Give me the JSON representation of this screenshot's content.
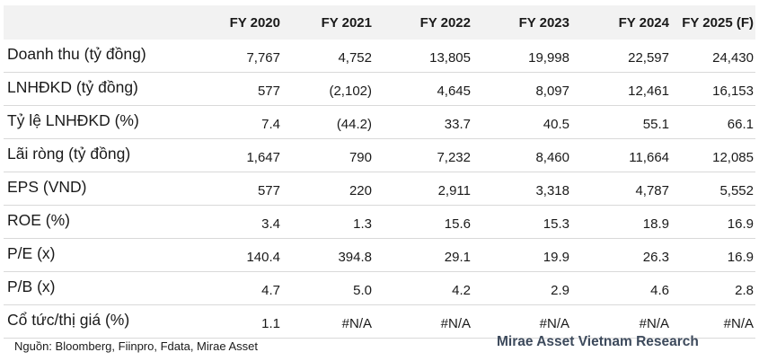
{
  "header": [
    "FY 2020",
    "FY 2021",
    "FY 2022",
    "FY 2023",
    "FY 2024",
    "FY 2025 (F)"
  ],
  "rows": [
    {
      "label": "Doanh thu (tỷ đồng)",
      "values": [
        "7,767",
        "4,752",
        "13,805",
        "19,998",
        "22,597",
        "24,430"
      ]
    },
    {
      "label": "LNHĐKD (tỷ đồng)",
      "values": [
        "577",
        "(2,102)",
        "4,645",
        "8,097",
        "12,461",
        "16,153"
      ]
    },
    {
      "label": "Tỷ lệ LNHĐKD (%)",
      "values": [
        "7.4",
        "(44.2)",
        "33.7",
        "40.5",
        "55.1",
        "66.1"
      ]
    },
    {
      "label": "Lãi ròng (tỷ đồng)",
      "values": [
        "1,647",
        "790",
        "7,232",
        "8,460",
        "11,664",
        "12,085"
      ]
    },
    {
      "label": "EPS (VND)",
      "values": [
        "577",
        "220",
        "2,911",
        "3,318",
        "4,787",
        "5,552"
      ]
    },
    {
      "label": "ROE (%)",
      "values": [
        "3.4",
        "1.3",
        "15.6",
        "15.3",
        "18.9",
        "16.9"
      ]
    },
    {
      "label": "P/E (x)",
      "values": [
        "140.4",
        "394.8",
        "29.1",
        "19.9",
        "26.3",
        "16.9"
      ]
    },
    {
      "label": "P/B (x)",
      "values": [
        "4.7",
        "5.0",
        "4.2",
        "2.9",
        "4.6",
        "2.8"
      ]
    },
    {
      "label": "Cổ tức/thị giá (%)",
      "values": [
        "1.1",
        "#N/A",
        "#N/A",
        "#N/A",
        "#N/A",
        "#N/A"
      ]
    }
  ],
  "source": "Nguồn: Bloomberg, Fiinpro, Fdata, Mirae Asset",
  "brand": "Mirae Asset Vietnam Research"
}
